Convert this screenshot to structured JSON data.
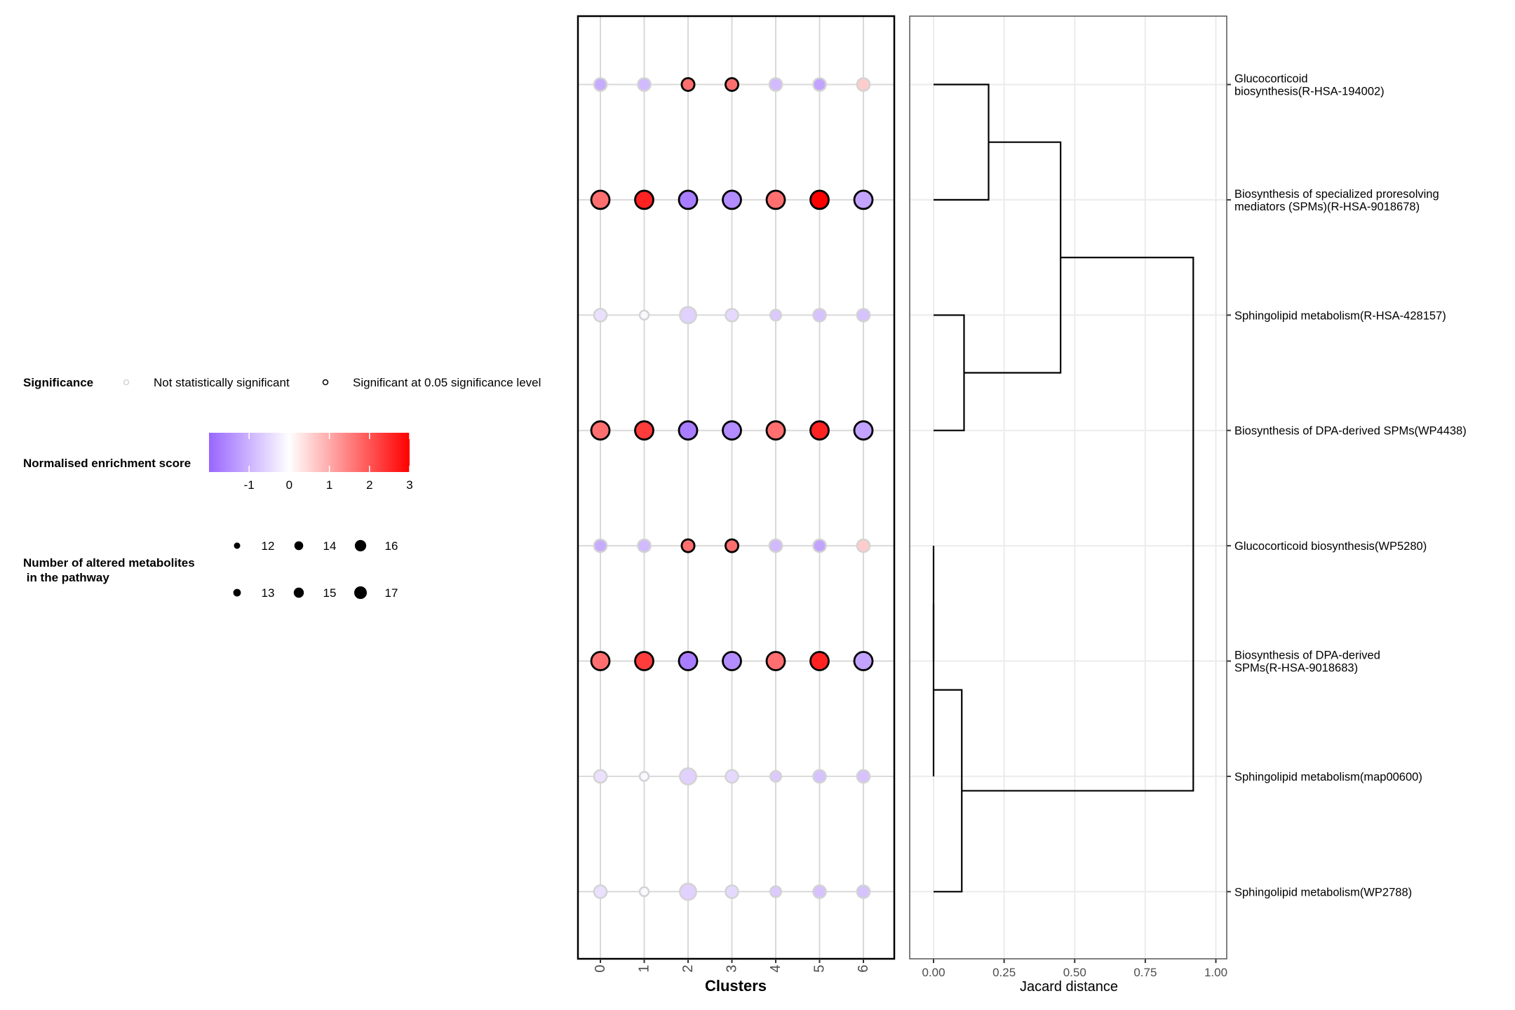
{
  "chart_data": [
    {
      "type": "scatter",
      "subtype": "dot-matrix",
      "xlabel": "Clusters",
      "categories": [
        "0",
        "1",
        "2",
        "3",
        "4",
        "5",
        "6"
      ],
      "rows": [
        {
          "nes": [
            -1.1,
            -0.9,
            1.7,
            1.7,
            -0.9,
            -1.2,
            0.6
          ],
          "count": [
            14,
            14,
            14,
            14,
            14,
            14,
            14
          ],
          "significant": [
            false,
            false,
            true,
            true,
            false,
            false,
            false
          ]
        },
        {
          "nes": [
            1.7,
            2.6,
            -1.7,
            -1.5,
            1.7,
            3.0,
            -1.2
          ],
          "count": [
            17,
            17,
            17,
            17,
            17,
            17,
            17
          ],
          "significant": [
            true,
            true,
            true,
            true,
            true,
            true,
            true
          ]
        },
        {
          "nes": [
            -0.4,
            -0.1,
            -0.6,
            -0.5,
            -0.7,
            -0.8,
            -0.8
          ],
          "count": [
            14,
            12,
            16,
            14,
            13,
            14,
            14
          ],
          "significant": [
            false,
            false,
            false,
            false,
            false,
            false,
            false
          ]
        },
        {
          "nes": [
            1.7,
            2.3,
            -1.7,
            -1.5,
            1.7,
            2.6,
            -1.2
          ],
          "count": [
            17,
            17,
            17,
            17,
            17,
            17,
            17
          ],
          "significant": [
            true,
            true,
            true,
            true,
            true,
            true,
            true
          ]
        },
        {
          "nes": [
            -1.1,
            -0.9,
            1.7,
            1.7,
            -0.9,
            -1.2,
            0.6
          ],
          "count": [
            14,
            14,
            14,
            14,
            14,
            14,
            14
          ],
          "significant": [
            false,
            false,
            true,
            true,
            false,
            false,
            false
          ]
        },
        {
          "nes": [
            1.7,
            2.3,
            -1.7,
            -1.5,
            1.7,
            2.6,
            -1.2
          ],
          "count": [
            17,
            17,
            17,
            17,
            17,
            17,
            17
          ],
          "significant": [
            true,
            true,
            true,
            true,
            true,
            true,
            true
          ]
        },
        {
          "nes": [
            -0.4,
            -0.1,
            -0.6,
            -0.5,
            -0.7,
            -0.8,
            -0.8
          ],
          "count": [
            14,
            12,
            16,
            14,
            13,
            14,
            14
          ],
          "significant": [
            false,
            false,
            false,
            false,
            false,
            false,
            false
          ]
        },
        {
          "nes": [
            -0.4,
            -0.1,
            -0.6,
            -0.5,
            -0.7,
            -0.8,
            -0.8
          ],
          "count": [
            14,
            12,
            16,
            14,
            13,
            14,
            14
          ],
          "significant": [
            false,
            false,
            false,
            false,
            false,
            false,
            false
          ]
        }
      ],
      "color_scale": {
        "low": "#9966FF",
        "mid": "#FFFFFF",
        "high": "#FF0000",
        "domain": [
          -2,
          0,
          3
        ]
      },
      "grid": true
    },
    {
      "type": "dendrogram",
      "xlabel": "Jacard distance",
      "xlim": [
        0,
        1
      ],
      "xticks": [
        "0.00",
        "0.25",
        "0.50",
        "0.75",
        "1.00"
      ],
      "merges": [
        {
          "a": 0,
          "b": 1,
          "height": 0.195
        },
        {
          "a": 2,
          "b": 3,
          "height": 0.108
        },
        {
          "a": "m0",
          "b": "m1",
          "height": 0.45
        },
        {
          "a": 4,
          "b": 5,
          "height": 0.0
        },
        {
          "a": "m3",
          "b": 6,
          "height": 0.0
        },
        {
          "a": "m4",
          "b": 7,
          "height": 0.1
        },
        {
          "a": "m2",
          "b": "m5",
          "height": 0.92
        }
      ],
      "grid": true
    }
  ],
  "pathways": [
    [
      "Glucocorticoid",
      "biosynthesis(R-HSA-194002)"
    ],
    [
      "Biosynthesis of specialized proresolving",
      "mediators (SPMs)(R-HSA-9018678)"
    ],
    [
      "Sphingolipid metabolism(R-HSA-428157)"
    ],
    [
      "Biosynthesis of DPA-derived SPMs(WP4438)"
    ],
    [
      "Glucocorticoid biosynthesis(WP5280)"
    ],
    [
      "Biosynthesis of DPA-derived",
      "SPMs(R-HSA-9018683)"
    ],
    [
      "Sphingolipid metabolism(map00600)"
    ],
    [
      "Sphingolipid metabolism(WP2788)"
    ]
  ],
  "legend": {
    "significance": {
      "title": "Significance",
      "not_sig": "Not statistically significant",
      "sig": "Significant at 0.05 significance level",
      "not_sig_color": "#D3D3D3",
      "sig_color": "#000000"
    },
    "nes": {
      "title": "Normalised enrichment score",
      "ticks": [
        "-1",
        "0",
        "1",
        "2",
        "3"
      ]
    },
    "size": {
      "title_lines": [
        "Number of altered metabolites",
        " in the pathway"
      ],
      "values": [
        "12",
        "14",
        "16",
        "13",
        "15",
        "17"
      ]
    }
  }
}
